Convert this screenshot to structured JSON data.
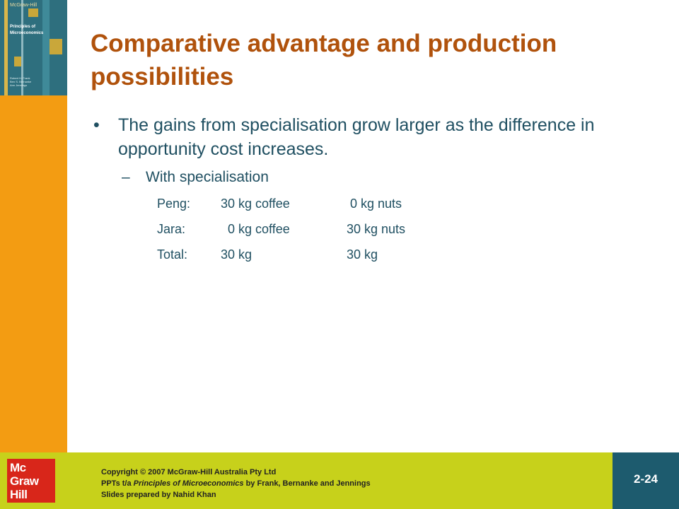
{
  "cover": {
    "brand": "McGraw-Hill",
    "title_lines": [
      "Principles of",
      "Microeconomics"
    ],
    "authors": [
      "Robert H. Frank",
      "Ben S. Bernanke",
      "Ann Jennings"
    ]
  },
  "slide": {
    "title": "Comparative advantage and production possibilities",
    "bullet": {
      "marker": "•",
      "text": "The gains from specialisation  grow larger as the difference in opportunity  cost increases."
    },
    "sub_bullet": {
      "marker": "–",
      "text": "With specialisation"
    },
    "production": [
      {
        "name": "Peng:",
        "coffee": "30 kg coffee",
        "nuts": " 0 kg nuts"
      },
      {
        "name": "Jara:",
        "coffee": "  0 kg coffee",
        "nuts": "30 kg nuts"
      },
      {
        "name": "Total:",
        "coffee": "30 kg",
        "nuts": "30 kg"
      }
    ]
  },
  "footer": {
    "logo_lines": [
      "Mc",
      "Graw",
      "Hill"
    ],
    "copyright_line1": "Copyright  © 2007 McGraw-Hill Australia Pty Ltd",
    "copyright_line2_pre": "PPTs t/a ",
    "copyright_line2_book": "Principles of Microeconomics",
    "copyright_line2_post": " by Frank, Bernanke  and Jennings",
    "copyright_line3": "Slides prepared by Nahid Khan",
    "slide_number": "2-24"
  },
  "colors": {
    "sidebar": "#f39c12",
    "title": "#b0520c",
    "body_text": "#1f4f61",
    "footer": "#c7d11b",
    "slide_number_box": "#1d5b6e",
    "logo": "#d8261a"
  }
}
